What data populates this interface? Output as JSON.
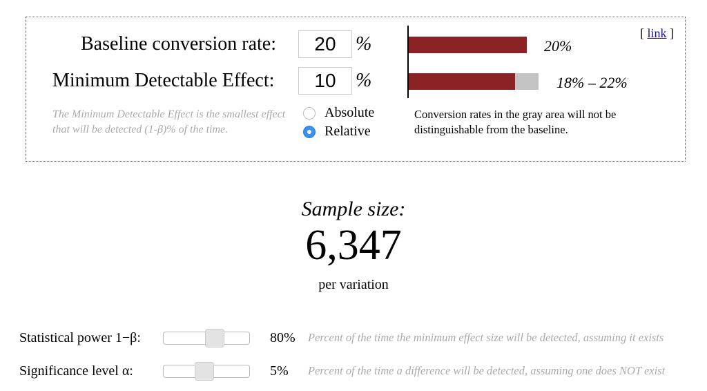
{
  "inputs": {
    "baseline": {
      "label": "Baseline conversion rate:",
      "value": "20",
      "unit": "%"
    },
    "mde": {
      "label": "Minimum Detectable Effect:",
      "value": "10",
      "unit": "%"
    },
    "mde_hint": "The Minimum Detectable Effect is the smallest effect that will be detected (1-β)% of the time.",
    "mode_options": [
      {
        "label": "Absolute",
        "checked": false
      },
      {
        "label": "Relative",
        "checked": true
      }
    ]
  },
  "visual": {
    "baseline_bar_label": "20%",
    "range_bar_label": "18% – 22%",
    "baseline_rate": 0.2,
    "range_low": 0.18,
    "range_high": 0.22,
    "note": "Conversion rates in the gray area will not be distinguishable from the baseline.",
    "link_text": "[ link ]",
    "colors": {
      "bar": "#8b2226",
      "gray_area": "#c3c3c3",
      "radio_selected": "#3b8ff0"
    }
  },
  "result": {
    "title": "Sample size:",
    "value": "6,347",
    "subtitle": "per variation"
  },
  "settings": [
    {
      "label": "Statistical power 1−β:",
      "value_text": "80%",
      "value": 0.8,
      "description": "Percent of the time the minimum effect size will be detected, assuming it exists"
    },
    {
      "label": "Significance level α:",
      "value_text": "5%",
      "value": 0.05,
      "description": "Percent of the time a difference will be detected, assuming one does NOT exist"
    }
  ]
}
